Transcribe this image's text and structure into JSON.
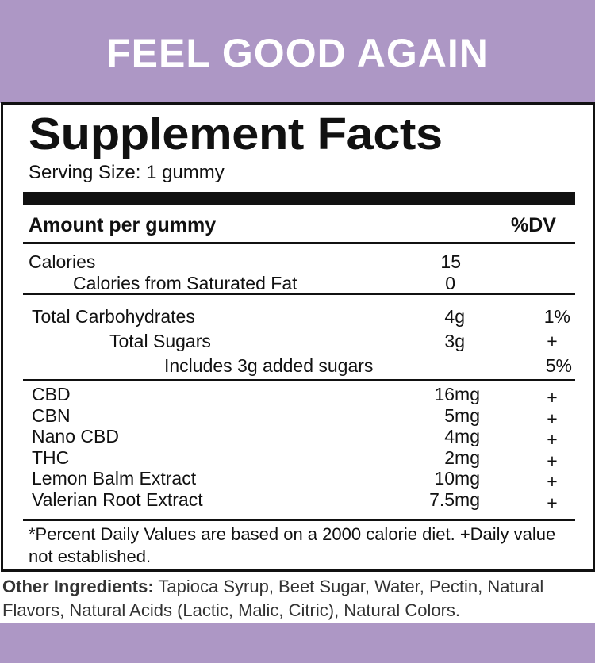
{
  "brand": {
    "title": "FEEL GOOD AGAIN",
    "color": "#ad97c5"
  },
  "facts": {
    "title": "Supplement Facts",
    "serving_size": "Serving Size: 1 gummy",
    "header": {
      "amount": "Amount per gummy",
      "dv": "%DV"
    },
    "calories": [
      {
        "name": "Calories",
        "amount": "15",
        "dv": ""
      },
      {
        "name": "Calories from Saturated Fat",
        "amount": "0",
        "dv": ""
      }
    ],
    "carbs": [
      {
        "name": "Total Carbohydrates",
        "amount": "4g",
        "dv": "1%"
      },
      {
        "name": "Total Sugars",
        "amount": "3g",
        "dv": "+"
      },
      {
        "name": "Includes 3g added sugars",
        "amount": "",
        "dv": "5%"
      }
    ],
    "actives": [
      {
        "name": "CBD",
        "amount": "16mg",
        "dv": "+"
      },
      {
        "name": "CBN",
        "amount": "5mg",
        "dv": "+"
      },
      {
        "name": "Nano CBD",
        "amount": "4mg",
        "dv": "+"
      },
      {
        "name": "THC",
        "amount": "2mg",
        "dv": "+"
      },
      {
        "name": "Lemon Balm Extract",
        "amount": "10mg",
        "dv": "+"
      },
      {
        "name": "Valerian Root Extract",
        "amount": "7.5mg",
        "dv": "+"
      }
    ],
    "footnote": "*Percent Daily Values are based on a 2000 calorie diet. +Daily value not established."
  },
  "ingredients": {
    "label": "Other Ingredients:",
    "text": " Tapioca Syrup, Beet Sugar, Water, Pectin, Natural Flavors, Natural Acids (Lactic, Malic, Citric), Natural Colors."
  }
}
